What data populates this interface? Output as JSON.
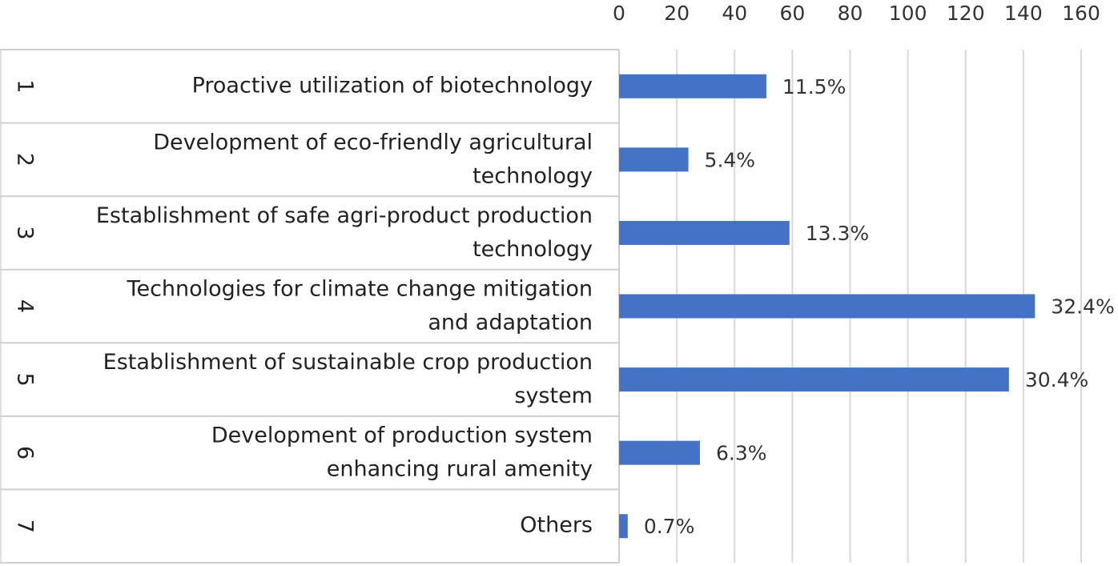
{
  "chart_data": {
    "type": "bar",
    "orientation": "horizontal",
    "category_ids": [
      "1",
      "2",
      "3",
      "4",
      "5",
      "6",
      "7"
    ],
    "categories": [
      "Proactive utilization of biotechnology",
      "Development of eco-friendly agricultural\ntechnology",
      "Establishment of safe agri-product production\ntechnology",
      "Technologies for climate change mitigation\nand adaptation",
      "Establishment of sustainable crop production\nsystem",
      "Development of production system\nenhancing rural amenity",
      "Others"
    ],
    "values": [
      51,
      24,
      59,
      144,
      135,
      28,
      3
    ],
    "value_labels": [
      "11.5%",
      "5.4%",
      "13.3%",
      "32.4%",
      "30.4%",
      "6.3%",
      "0.7%"
    ],
    "color": "#4472c4",
    "xlim": [
      0,
      160
    ],
    "xticks": [
      0,
      20,
      40,
      60,
      80,
      100,
      120,
      140,
      160
    ],
    "grid": true
  }
}
